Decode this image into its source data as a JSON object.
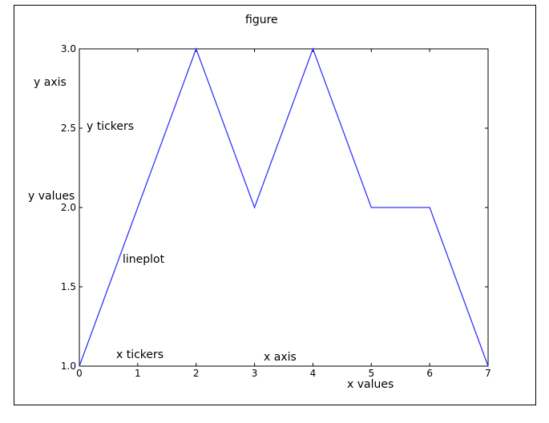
{
  "figure_label": "figure",
  "annotations": {
    "y_axis": "y axis",
    "y_tickers": "y tickers",
    "y_values": "y values",
    "lineplot": "lineplot",
    "x_tickers": "x tickers",
    "x_axis": "x axis",
    "x_values": "x values"
  },
  "chart_data": {
    "type": "line",
    "title": "",
    "xlabel": "",
    "ylabel": "",
    "x": [
      0,
      1,
      2,
      3,
      4,
      5,
      6,
      7
    ],
    "series": [
      {
        "values": [
          1.0,
          2.0,
          3.0,
          2.0,
          3.0,
          2.0,
          2.0,
          1.0
        ],
        "color": "#3333ff"
      }
    ],
    "xlim": [
      0,
      7
    ],
    "ylim": [
      1.0,
      3.0
    ],
    "xticks": [
      "0",
      "1",
      "2",
      "3",
      "4",
      "5",
      "6",
      "7"
    ],
    "yticks": [
      "1.0",
      "1.5",
      "2.0",
      "2.5",
      "3.0"
    ],
    "ytick_values": [
      1.0,
      1.5,
      2.0,
      2.5,
      3.0
    ],
    "grid": false
  }
}
